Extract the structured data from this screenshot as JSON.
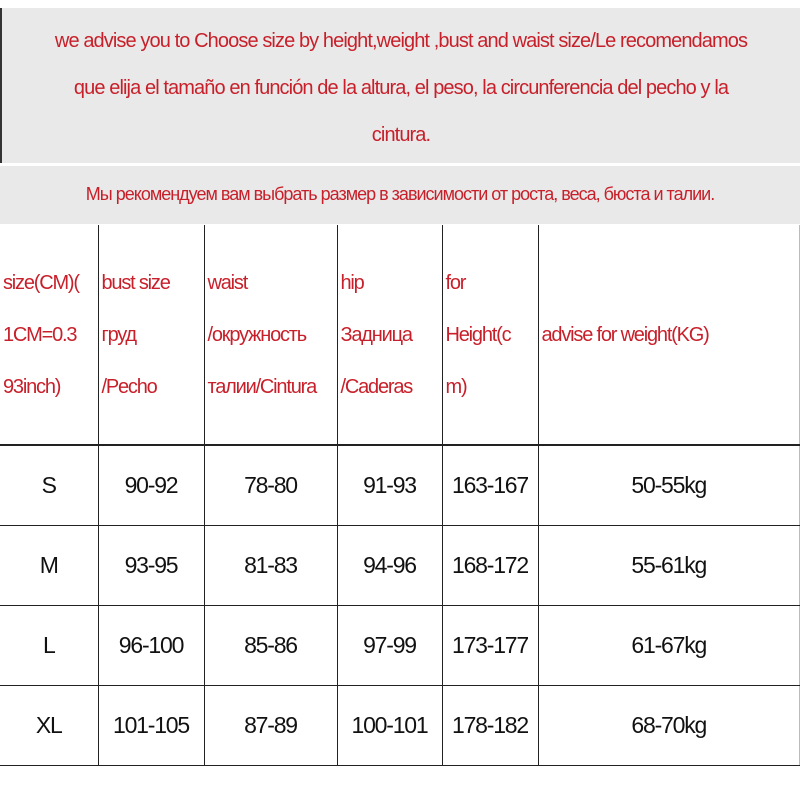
{
  "notice": {
    "lines": [
      "we advise you to Choose size by height,weight ,bust and waist  size/Le recomendamos",
      "que elija el tamaño en función de la altura, el peso, la circunferencia del pecho y la",
      "cintura."
    ],
    "russian": "Мы рекомендуем вам выбрать размер в зависимости от роста, веса, бюста и талии."
  },
  "table": {
    "headers": [
      [
        "size(CM)(",
        "1CM=0.3",
        "93inch)"
      ],
      [
        "bust size",
        "груд",
        "/Pecho"
      ],
      [
        "waist",
        "/окружность",
        "талии/Cintura"
      ],
      [
        "hip",
        "Задница",
        "/Caderas"
      ],
      [
        "for",
        "Height(c",
        "m)"
      ],
      [
        "advise for weight(KG)"
      ]
    ],
    "rows": [
      [
        "S",
        "90-92",
        "78-80",
        "91-93",
        "163-167",
        "50-55kg"
      ],
      [
        "M",
        "93-95",
        "81-83",
        "94-96",
        "168-172",
        "55-61kg"
      ],
      [
        "L",
        "96-100",
        "85-86",
        "97-99",
        "173-177",
        "61-67kg"
      ],
      [
        "XL",
        "101-105",
        "87-89",
        "100-101",
        "178-182",
        "68-70kg"
      ]
    ]
  },
  "colors": {
    "text_red": "#c8202a",
    "banner_bg": "#e9e9e9"
  }
}
